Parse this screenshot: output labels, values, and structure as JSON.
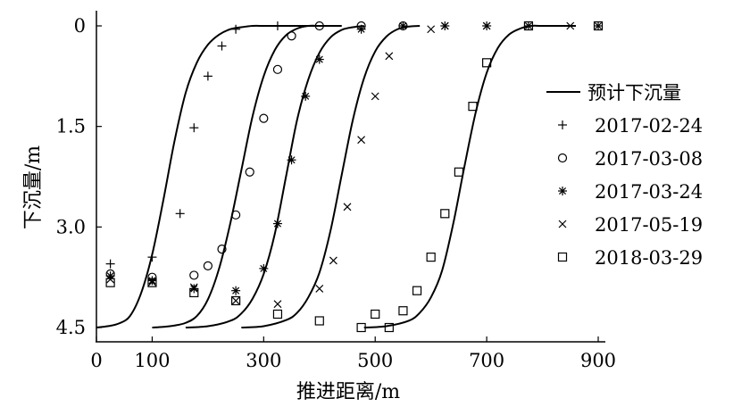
{
  "chart_data": {
    "type": "line",
    "xlabel": "推进距离/m",
    "ylabel": "下沉量/m",
    "xlim": [
      0,
      900
    ],
    "ylim": [
      4.5,
      0
    ],
    "y_axis_inverted": true,
    "x_ticks": [
      0,
      100,
      300,
      500,
      700,
      900
    ],
    "y_ticks": [
      0,
      1.5,
      3.0,
      4.5
    ],
    "y_tick_labels": [
      "0",
      "1.5",
      "3.0",
      "4.5"
    ],
    "grid": false,
    "legend_position": "right",
    "predicted": {
      "name": "预计下沉量",
      "color": "#000000",
      "curves": [
        {
          "x": [
            0,
            20,
            40,
            60,
            80,
            100,
            120,
            140,
            160,
            180,
            200,
            220,
            240,
            260,
            280,
            300,
            320,
            340,
            360,
            380,
            400
          ],
          "y": [
            4.5,
            4.48,
            4.44,
            4.33,
            3.99,
            3.41,
            2.6,
            1.72,
            1.0,
            0.55,
            0.28,
            0.13,
            0.05,
            0.02,
            0,
            0,
            0,
            0,
            0,
            0,
            0
          ]
        },
        {
          "x": [
            100,
            120,
            140,
            160,
            180,
            200,
            220,
            240,
            260,
            280,
            300,
            320,
            340,
            360,
            380,
            400,
            420,
            440
          ],
          "y": [
            4.5,
            4.49,
            4.47,
            4.43,
            4.33,
            4.08,
            3.62,
            2.95,
            2.15,
            1.35,
            0.75,
            0.36,
            0.14,
            0.04,
            0,
            0,
            0,
            0
          ]
        },
        {
          "x": [
            160,
            200,
            240,
            260,
            280,
            300,
            320,
            340,
            360,
            380,
            400,
            420,
            440,
            460,
            480
          ],
          "y": [
            4.5,
            4.48,
            4.4,
            4.29,
            4.07,
            3.7,
            3.1,
            2.25,
            1.4,
            0.8,
            0.4,
            0.17,
            0.06,
            0.02,
            0
          ]
        },
        {
          "x": [
            260,
            300,
            340,
            360,
            380,
            400,
            420,
            440,
            460,
            480,
            500,
            520,
            540,
            560,
            580
          ],
          "y": [
            4.5,
            4.48,
            4.39,
            4.28,
            4.05,
            3.68,
            3.05,
            2.22,
            1.4,
            0.78,
            0.38,
            0.16,
            0.05,
            0.01,
            0
          ]
        },
        {
          "x": [
            480,
            520,
            560,
            580,
            600,
            620,
            640,
            660,
            680,
            700,
            720,
            740,
            760,
            780,
            800,
            860
          ],
          "y": [
            4.5,
            4.48,
            4.4,
            4.28,
            4.05,
            3.65,
            2.95,
            2.1,
            1.3,
            0.7,
            0.33,
            0.13,
            0.04,
            0,
            0,
            0
          ]
        }
      ]
    },
    "series": [
      {
        "name": "2017-02-24",
        "marker": "plus",
        "points": [
          [
            25,
            3.55
          ],
          [
            100,
            3.45
          ],
          [
            150,
            2.8
          ],
          [
            175,
            1.52
          ],
          [
            200,
            0.75
          ],
          [
            225,
            0.3
          ],
          [
            250,
            0.05
          ],
          [
            325,
            0.0
          ]
        ]
      },
      {
        "name": "2017-03-08",
        "marker": "circle",
        "points": [
          [
            25,
            3.7
          ],
          [
            100,
            3.75
          ],
          [
            175,
            3.72
          ],
          [
            200,
            3.58
          ],
          [
            225,
            3.33
          ],
          [
            250,
            2.82
          ],
          [
            275,
            2.18
          ],
          [
            300,
            1.38
          ],
          [
            325,
            0.65
          ],
          [
            350,
            0.15
          ],
          [
            400,
            0.0
          ],
          [
            475,
            0.0
          ],
          [
            550,
            0.0
          ]
        ]
      },
      {
        "name": "2017-03-24",
        "marker": "asterisk",
        "points": [
          [
            25,
            3.73
          ],
          [
            100,
            3.8
          ],
          [
            175,
            3.92
          ],
          [
            250,
            3.95
          ],
          [
            300,
            3.62
          ],
          [
            325,
            2.95
          ],
          [
            350,
            2.0
          ],
          [
            375,
            1.05
          ],
          [
            400,
            0.5
          ],
          [
            475,
            0.05
          ],
          [
            550,
            0.0
          ],
          [
            625,
            0.0
          ],
          [
            700,
            0.0
          ],
          [
            775,
            0.0
          ],
          [
            900,
            0.0
          ]
        ]
      },
      {
        "name": "2017-05-19",
        "marker": "cross",
        "points": [
          [
            25,
            3.78
          ],
          [
            100,
            3.82
          ],
          [
            175,
            3.9
          ],
          [
            250,
            4.1
          ],
          [
            325,
            4.15
          ],
          [
            400,
            3.92
          ],
          [
            425,
            3.5
          ],
          [
            450,
            2.7
          ],
          [
            475,
            1.7
          ],
          [
            500,
            1.05
          ],
          [
            525,
            0.45
          ],
          [
            600,
            0.05
          ],
          [
            625,
            0.0
          ],
          [
            700,
            0.0
          ],
          [
            850,
            0.0
          ]
        ]
      },
      {
        "name": "2018-03-29",
        "marker": "square",
        "points": [
          [
            25,
            3.83
          ],
          [
            100,
            3.83
          ],
          [
            175,
            3.98
          ],
          [
            250,
            4.1
          ],
          [
            325,
            4.3
          ],
          [
            400,
            4.4
          ],
          [
            475,
            4.5
          ],
          [
            500,
            4.3
          ],
          [
            525,
            4.5
          ],
          [
            550,
            4.25
          ],
          [
            575,
            3.95
          ],
          [
            600,
            3.45
          ],
          [
            625,
            2.8
          ],
          [
            650,
            2.18
          ],
          [
            675,
            1.2
          ],
          [
            700,
            0.55
          ],
          [
            775,
            0.0
          ],
          [
            900,
            0.0
          ]
        ]
      }
    ]
  }
}
